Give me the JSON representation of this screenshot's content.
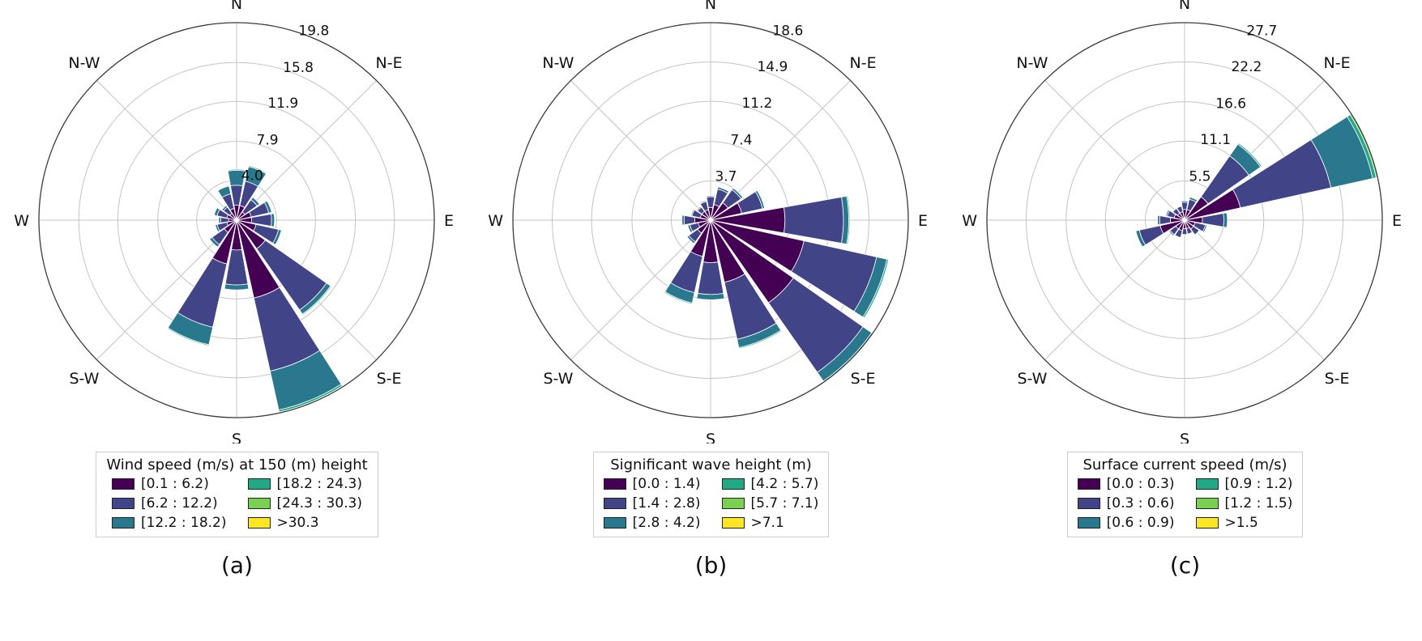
{
  "figure": {
    "background": "#ffffff"
  },
  "palette": {
    "bins": [
      "#440154",
      "#414487",
      "#2a788e",
      "#22a884",
      "#7ad151",
      "#fde725"
    ],
    "grid": "#c4c4c4",
    "outer": "#3a3a3a",
    "bar_edge": "#ffffff",
    "text": "#111111"
  },
  "compass": [
    "N",
    "N-E",
    "E",
    "S-E",
    "S",
    "S-W",
    "W",
    "N-W"
  ],
  "chart_data": [
    {
      "type": "bar",
      "polar": true,
      "id": "a",
      "caption": "(a)",
      "legend_title": "Wind speed (m/s) at 150 (m) height",
      "legend_bins": [
        "[0.1 : 6.2)",
        "[6.2 : 12.2)",
        "[12.2 : 18.2)",
        "[18.2 : 24.3)",
        "[24.3 : 30.3)",
        ">30.3"
      ],
      "rings": [
        4.0,
        7.9,
        11.9,
        15.8,
        19.8
      ],
      "tick_labels": [
        "4.0",
        "7.9",
        "11.9",
        "15.8",
        "19.8"
      ],
      "rmax": 19.8,
      "categories": [
        "N",
        "NNE",
        "NE",
        "ENE",
        "E",
        "ESE",
        "SE",
        "SSE",
        "S",
        "SSW",
        "SW",
        "WSW",
        "W",
        "WNW",
        "NW",
        "NNW"
      ],
      "series": [
        {
          "name": "[0.1 : 6.2)",
          "values": [
            1.5,
            1.5,
            1.0,
            1.5,
            1.5,
            2.0,
            3.5,
            8.0,
            3.0,
            4.5,
            1.5,
            1.0,
            0.8,
            1.0,
            0.8,
            1.2
          ]
        },
        {
          "name": "[6.2 : 12.2)",
          "values": [
            2.0,
            2.5,
            1.5,
            1.8,
            2.0,
            2.3,
            7.5,
            7.5,
            3.5,
            6.5,
            1.5,
            1.0,
            0.8,
            1.0,
            0.8,
            1.5
          ]
        },
        {
          "name": "[12.2 : 18.2)",
          "values": [
            1.5,
            1.5,
            0.3,
            0.3,
            0.3,
            0.3,
            0.5,
            4.0,
            0.5,
            1.8,
            0.3,
            0.2,
            0.2,
            0.3,
            0.2,
            0.8
          ]
        },
        {
          "name": "[18.2 : 24.3)",
          "values": [
            0.1,
            0.1,
            0.0,
            0.0,
            0.0,
            0.0,
            0.1,
            0.2,
            0.0,
            0.1,
            0.0,
            0.0,
            0.0,
            0.0,
            0.0,
            0.0
          ]
        },
        {
          "name": "[24.3 : 30.3)",
          "values": [
            0.0,
            0.0,
            0.0,
            0.0,
            0.0,
            0.0,
            0.0,
            0.0,
            0.0,
            0.0,
            0.0,
            0.0,
            0.0,
            0.0,
            0.0,
            0.0
          ]
        },
        {
          "name": ">30.3",
          "values": [
            0.0,
            0.0,
            0.0,
            0.0,
            0.0,
            0.0,
            0.0,
            0.0,
            0.0,
            0.0,
            0.0,
            0.0,
            0.0,
            0.0,
            0.0,
            0.0
          ]
        }
      ]
    },
    {
      "type": "bar",
      "polar": true,
      "id": "b",
      "caption": "(b)",
      "legend_title": "Significant wave height (m)",
      "legend_bins": [
        "[0.0 : 1.4)",
        "[1.4 : 2.8)",
        "[2.8 : 4.2)",
        "[4.2 : 5.7)",
        "[5.7 : 7.1)",
        ">7.1"
      ],
      "rings": [
        3.7,
        7.4,
        11.2,
        14.9,
        18.6
      ],
      "tick_labels": [
        "3.7",
        "7.4",
        "11.2",
        "14.9",
        "18.6"
      ],
      "rmax": 18.6,
      "categories": [
        "N",
        "NNE",
        "NE",
        "ENE",
        "E",
        "ESE",
        "SE",
        "SSE",
        "S",
        "SSW",
        "SW",
        "WSW",
        "W",
        "WNW",
        "NW",
        "NNW"
      ],
      "series": [
        {
          "name": "[0.0 : 1.4)",
          "values": [
            1.2,
            1.5,
            2.0,
            3.0,
            7.0,
            9.0,
            9.5,
            6.0,
            4.0,
            3.5,
            1.5,
            1.2,
            1.5,
            1.0,
            1.0,
            1.0
          ]
        },
        {
          "name": "[1.4 : 2.8)",
          "values": [
            1.0,
            1.5,
            1.5,
            2.0,
            5.5,
            7.0,
            8.0,
            5.5,
            3.0,
            3.5,
            1.0,
            0.8,
            1.0,
            0.8,
            0.5,
            0.8
          ]
        },
        {
          "name": "[2.8 : 4.2)",
          "values": [
            0.1,
            0.2,
            0.2,
            0.2,
            0.5,
            1.0,
            1.0,
            0.8,
            0.5,
            1.0,
            0.2,
            0.2,
            0.2,
            0.1,
            0.1,
            0.1
          ]
        },
        {
          "name": "[4.2 : 5.7)",
          "values": [
            0.0,
            0.0,
            0.0,
            0.0,
            0.1,
            0.15,
            0.15,
            0.1,
            0.0,
            0.1,
            0.0,
            0.0,
            0.0,
            0.0,
            0.0,
            0.0
          ]
        },
        {
          "name": "[5.7 : 7.1)",
          "values": [
            0.0,
            0.0,
            0.0,
            0.0,
            0.0,
            0.0,
            0.0,
            0.0,
            0.0,
            0.0,
            0.0,
            0.0,
            0.0,
            0.0,
            0.0,
            0.0
          ]
        },
        {
          "name": ">7.1",
          "values": [
            0.0,
            0.0,
            0.0,
            0.0,
            0.0,
            0.0,
            0.0,
            0.0,
            0.0,
            0.0,
            0.0,
            0.0,
            0.0,
            0.0,
            0.0,
            0.0
          ]
        }
      ]
    },
    {
      "type": "bar",
      "polar": true,
      "id": "c",
      "caption": "(c)",
      "legend_title": "Surface current speed (m/s)",
      "legend_bins": [
        "[0.0 : 0.3)",
        "[0.3 : 0.6)",
        "[0.6 : 0.9)",
        "[0.9 : 1.2)",
        "[1.2 : 1.5)",
        ">1.5"
      ],
      "rings": [
        5.5,
        11.1,
        16.6,
        22.2,
        27.7
      ],
      "tick_labels": [
        "5.5",
        "11.1",
        "16.6",
        "22.2",
        "27.7"
      ],
      "rmax": 27.7,
      "categories": [
        "N",
        "NNE",
        "NE",
        "ENE",
        "E",
        "ESE",
        "SE",
        "SSE",
        "S",
        "SSW",
        "SW",
        "WSW",
        "W",
        "WNW",
        "NW",
        "NNW"
      ],
      "series": [
        {
          "name": "[0.0 : 0.3)",
          "values": [
            1.5,
            1.5,
            4.0,
            8.0,
            2.5,
            1.5,
            1.5,
            1.2,
            1.2,
            1.5,
            1.5,
            3.5,
            2.0,
            1.5,
            1.2,
            1.2
          ]
        },
        {
          "name": "[0.3 : 0.6)",
          "values": [
            1.0,
            1.5,
            7.0,
            13.0,
            3.0,
            1.5,
            1.0,
            0.8,
            0.8,
            1.0,
            1.0,
            3.0,
            1.5,
            1.0,
            0.8,
            0.8
          ]
        },
        {
          "name": "[0.6 : 0.9)",
          "values": [
            0.2,
            0.3,
            2.0,
            6.0,
            0.5,
            0.2,
            0.0,
            0.0,
            0.0,
            0.0,
            0.2,
            0.5,
            0.3,
            0.2,
            0.0,
            0.0
          ]
        },
        {
          "name": "[0.9 : 1.2)",
          "values": [
            0.0,
            0.0,
            0.2,
            0.5,
            0.0,
            0.0,
            0.0,
            0.0,
            0.0,
            0.0,
            0.0,
            0.0,
            0.0,
            0.0,
            0.0,
            0.0
          ]
        },
        {
          "name": "[1.2 : 1.5)",
          "values": [
            0.0,
            0.0,
            0.0,
            0.2,
            0.0,
            0.0,
            0.0,
            0.0,
            0.0,
            0.0,
            0.0,
            0.0,
            0.0,
            0.0,
            0.0,
            0.0
          ]
        },
        {
          "name": ">1.5",
          "values": [
            0.0,
            0.0,
            0.0,
            0.0,
            0.0,
            0.0,
            0.0,
            0.0,
            0.0,
            0.0,
            0.0,
            0.0,
            0.0,
            0.0,
            0.0,
            0.0
          ]
        }
      ]
    }
  ]
}
